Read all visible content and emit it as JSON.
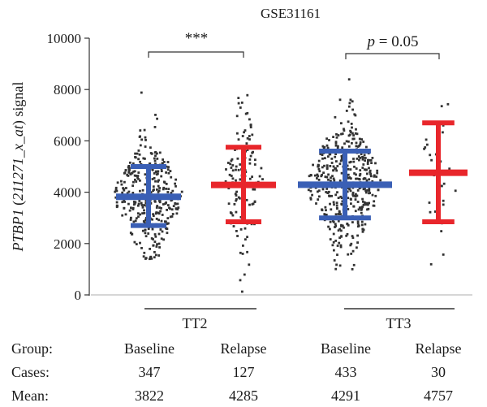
{
  "chart_data": {
    "type": "scatter",
    "title": "GSE31161",
    "ylabel": {
      "gene": "PTBP1",
      "probe": "211271_x_at",
      "suffix": "signal"
    },
    "ylim": [
      0,
      10000
    ],
    "yticks": [
      0,
      2000,
      4000,
      6000,
      8000,
      10000
    ],
    "grid": false,
    "groups": [
      {
        "label": "TT2",
        "series": [
          {
            "category": "Baseline",
            "color": "#3a5fb5",
            "cases": "347",
            "mean": "3822",
            "mean_value": 3822,
            "lower": 2700,
            "upper": 5000,
            "min": 1400,
            "max": 7900
          },
          {
            "category": "Relapse",
            "color": "#e8262b",
            "cases": "127",
            "mean": "4285",
            "mean_value": 4285,
            "lower": 2850,
            "upper": 5750,
            "min": 100,
            "max": 8300
          }
        ]
      },
      {
        "label": "TT3",
        "series": [
          {
            "category": "Baseline",
            "color": "#3a5fb5",
            "cases": "433",
            "mean": "4291",
            "mean_value": 4291,
            "lower": 3000,
            "upper": 5600,
            "min": 900,
            "max": 8900
          },
          {
            "category": "Relapse",
            "color": "#e8262b",
            "cases": "30",
            "mean": "4757",
            "mean_value": 4757,
            "lower": 2850,
            "upper": 6700,
            "min": 900,
            "max": 7600
          }
        ]
      }
    ],
    "annotations": [
      {
        "text_italic": "",
        "text": "***",
        "between": [
          "TT2 Baseline",
          "TT2 Relapse"
        ]
      },
      {
        "text_italic": "p",
        "text": " = 0.05",
        "between": [
          "TT3 Baseline",
          "TT3 Relapse"
        ]
      }
    ]
  },
  "table": {
    "row_labels": {
      "group": "Group:",
      "cases": "Cases:",
      "mean": "Mean:"
    }
  }
}
